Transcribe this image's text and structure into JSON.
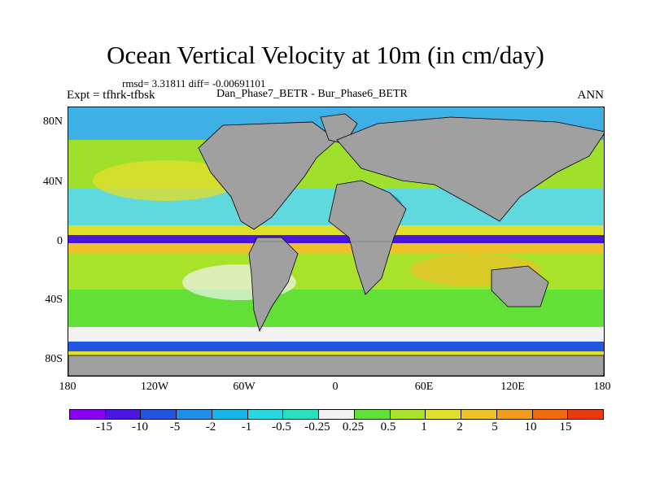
{
  "figure": {
    "title": "Ocean Vertical Velocity at 10m (in cm/day)",
    "stats_line": "rmsd= 3.31811 diff= -0.00691101",
    "experiment": "Expt = tfhrk-tfbsk",
    "cases": "Dan_Phase7_BETR - Bur_Phase6_BETR",
    "season": "ANN"
  },
  "map": {
    "lat_labels": [
      "80N",
      "40N",
      "0",
      "40S",
      "80S"
    ],
    "lon_labels": [
      "180",
      "120W",
      "60W",
      "0",
      "60E",
      "120E",
      "180"
    ],
    "land_color": "#a0a0a0"
  },
  "colorbar": {
    "levels": [
      "-15",
      "-10",
      "-5",
      "-2",
      "-1",
      "-0.5",
      "-0.25",
      "0.25",
      "0.5",
      "1",
      "2",
      "5",
      "10",
      "15"
    ],
    "colors": [
      "#8a00f0",
      "#4a16e0",
      "#2255e0",
      "#1f8fe8",
      "#17b6ea",
      "#26d8e0",
      "#28e0bc",
      "#f2f2f2",
      "#62e038",
      "#a9e22a",
      "#e0df2a",
      "#eec128",
      "#f09b1e",
      "#f06a10",
      "#e83a10"
    ]
  }
}
